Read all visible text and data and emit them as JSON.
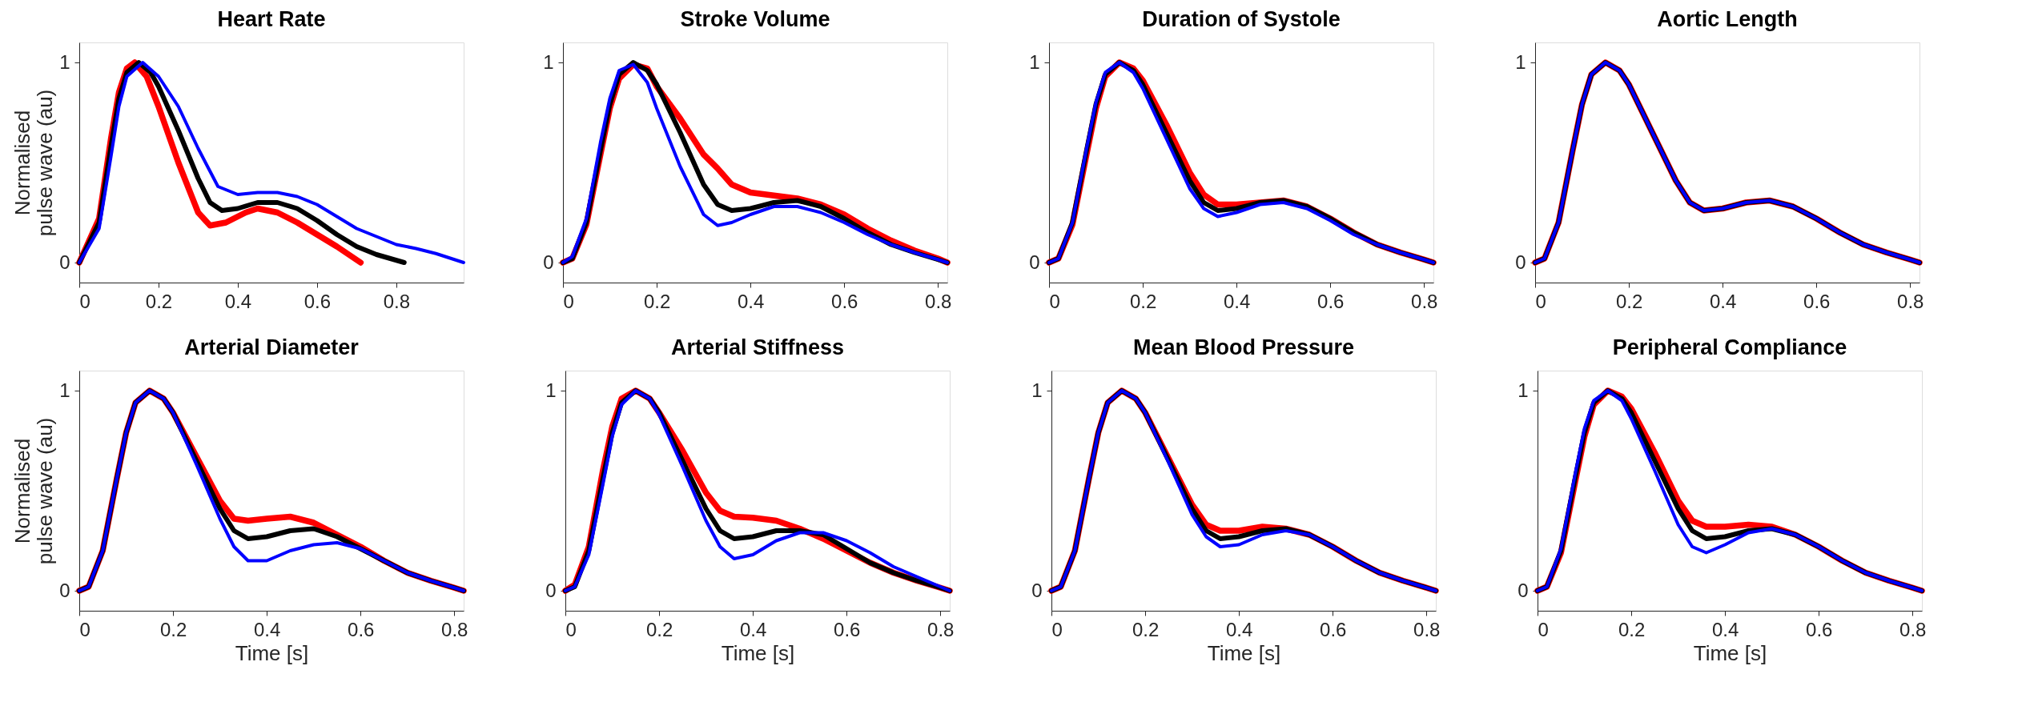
{
  "chart_data": [
    {
      "type": "line",
      "title": "Heart Rate",
      "ylabel": "Normalised pulse wave (au)",
      "xlim": [
        0,
        0.97
      ],
      "ylim": [
        -0.1,
        1.1
      ],
      "xticks": [
        0,
        0.2,
        0.4,
        0.6,
        0.8
      ],
      "yticks": [
        0,
        1
      ],
      "grid": false,
      "series": [
        {
          "color": "#ff0000",
          "x": [
            0,
            0.05,
            0.08,
            0.1,
            0.12,
            0.14,
            0.17,
            0.2,
            0.25,
            0.3,
            0.33,
            0.37,
            0.42,
            0.45,
            0.5,
            0.55,
            0.6,
            0.65,
            0.71
          ],
          "values": [
            0,
            0.22,
            0.62,
            0.85,
            0.97,
            1.0,
            0.93,
            0.78,
            0.5,
            0.25,
            0.185,
            0.2,
            0.25,
            0.27,
            0.25,
            0.2,
            0.14,
            0.08,
            0
          ]
        },
        {
          "color": "#000000",
          "x": [
            0,
            0.05,
            0.08,
            0.1,
            0.12,
            0.15,
            0.18,
            0.2,
            0.25,
            0.3,
            0.33,
            0.36,
            0.4,
            0.45,
            0.5,
            0.55,
            0.6,
            0.65,
            0.7,
            0.75,
            0.82
          ],
          "values": [
            0,
            0.2,
            0.58,
            0.82,
            0.95,
            1.0,
            0.95,
            0.88,
            0.66,
            0.42,
            0.3,
            0.26,
            0.27,
            0.3,
            0.3,
            0.27,
            0.21,
            0.14,
            0.08,
            0.04,
            0
          ]
        },
        {
          "color": "#0000ff",
          "x": [
            0,
            0.05,
            0.08,
            0.1,
            0.12,
            0.16,
            0.2,
            0.25,
            0.3,
            0.35,
            0.4,
            0.45,
            0.5,
            0.55,
            0.6,
            0.65,
            0.7,
            0.75,
            0.8,
            0.85,
            0.9,
            0.97
          ],
          "values": [
            0,
            0.17,
            0.53,
            0.78,
            0.93,
            1.0,
            0.93,
            0.78,
            0.57,
            0.38,
            0.34,
            0.35,
            0.35,
            0.33,
            0.29,
            0.23,
            0.17,
            0.13,
            0.09,
            0.07,
            0.045,
            0
          ]
        }
      ]
    },
    {
      "type": "line",
      "title": "Stroke Volume",
      "x": [
        0,
        0.02,
        0.05,
        0.08,
        0.1,
        0.12,
        0.15,
        0.18,
        0.2,
        0.25,
        0.3,
        0.33,
        0.36,
        0.4,
        0.45,
        0.5,
        0.55,
        0.6,
        0.65,
        0.7,
        0.75,
        0.8,
        0.82
      ],
      "xlim": [
        0,
        0.82
      ],
      "ylim": [
        -0.1,
        1.1
      ],
      "xticks": [
        0,
        0.2,
        0.4,
        0.6,
        0.8
      ],
      "yticks": [
        0,
        1
      ],
      "grid": false,
      "series": [
        {
          "color": "#ff0000",
          "values": [
            0,
            0.02,
            0.19,
            0.54,
            0.77,
            0.92,
            0.99,
            0.97,
            0.88,
            0.72,
            0.54,
            0.47,
            0.39,
            0.35,
            0.335,
            0.32,
            0.29,
            0.24,
            0.17,
            0.11,
            0.06,
            0.02,
            0
          ]
        },
        {
          "color": "#000000",
          "values": [
            0,
            0.02,
            0.2,
            0.56,
            0.79,
            0.94,
            1.0,
            0.96,
            0.89,
            0.65,
            0.39,
            0.29,
            0.26,
            0.27,
            0.3,
            0.31,
            0.28,
            0.22,
            0.15,
            0.09,
            0.05,
            0.015,
            0
          ]
        },
        {
          "color": "#0000ff",
          "values": [
            0,
            0.03,
            0.22,
            0.6,
            0.82,
            0.96,
            0.99,
            0.9,
            0.77,
            0.48,
            0.24,
            0.185,
            0.2,
            0.24,
            0.28,
            0.28,
            0.25,
            0.2,
            0.14,
            0.09,
            0.05,
            0.015,
            0
          ]
        }
      ]
    },
    {
      "type": "line",
      "title": "Duration of Systole",
      "x": [
        0,
        0.02,
        0.05,
        0.08,
        0.1,
        0.12,
        0.15,
        0.18,
        0.2,
        0.25,
        0.3,
        0.33,
        0.36,
        0.4,
        0.45,
        0.5,
        0.55,
        0.6,
        0.65,
        0.7,
        0.75,
        0.8,
        0.82
      ],
      "xlim": [
        0,
        0.82
      ],
      "ylim": [
        -0.1,
        1.1
      ],
      "xticks": [
        0,
        0.2,
        0.4,
        0.6,
        0.8
      ],
      "yticks": [
        0,
        1
      ],
      "grid": false,
      "series": [
        {
          "color": "#ff0000",
          "values": [
            0,
            0.02,
            0.19,
            0.54,
            0.77,
            0.93,
            1.0,
            0.97,
            0.91,
            0.69,
            0.45,
            0.34,
            0.29,
            0.29,
            0.3,
            0.31,
            0.28,
            0.22,
            0.15,
            0.09,
            0.05,
            0.015,
            0
          ]
        },
        {
          "color": "#000000",
          "values": [
            0,
            0.02,
            0.2,
            0.56,
            0.79,
            0.94,
            1.0,
            0.96,
            0.89,
            0.65,
            0.41,
            0.3,
            0.26,
            0.27,
            0.3,
            0.31,
            0.28,
            0.22,
            0.15,
            0.09,
            0.05,
            0.015,
            0
          ]
        },
        {
          "color": "#0000ff",
          "values": [
            0,
            0.02,
            0.2,
            0.57,
            0.8,
            0.95,
            1.0,
            0.95,
            0.87,
            0.62,
            0.37,
            0.27,
            0.23,
            0.25,
            0.29,
            0.3,
            0.27,
            0.21,
            0.14,
            0.09,
            0.05,
            0.015,
            0
          ]
        }
      ]
    },
    {
      "type": "line",
      "title": "Aortic Length",
      "x": [
        0,
        0.02,
        0.05,
        0.08,
        0.1,
        0.12,
        0.15,
        0.18,
        0.2,
        0.25,
        0.3,
        0.33,
        0.36,
        0.4,
        0.45,
        0.5,
        0.55,
        0.6,
        0.65,
        0.7,
        0.75,
        0.8,
        0.82
      ],
      "xlim": [
        0,
        0.82
      ],
      "ylim": [
        -0.1,
        1.1
      ],
      "xticks": [
        0,
        0.2,
        0.4,
        0.6,
        0.8
      ],
      "yticks": [
        0,
        1
      ],
      "grid": false,
      "series": [
        {
          "color": "#ff0000",
          "values": [
            0,
            0.02,
            0.2,
            0.56,
            0.79,
            0.94,
            1.0,
            0.96,
            0.89,
            0.65,
            0.41,
            0.3,
            0.26,
            0.27,
            0.3,
            0.31,
            0.28,
            0.22,
            0.15,
            0.09,
            0.05,
            0.015,
            0
          ]
        },
        {
          "color": "#000000",
          "values": [
            0,
            0.02,
            0.2,
            0.56,
            0.79,
            0.94,
            1.0,
            0.96,
            0.89,
            0.65,
            0.41,
            0.3,
            0.26,
            0.27,
            0.3,
            0.31,
            0.28,
            0.22,
            0.15,
            0.09,
            0.05,
            0.015,
            0
          ]
        },
        {
          "color": "#0000ff",
          "values": [
            0,
            0.02,
            0.2,
            0.56,
            0.79,
            0.94,
            1.0,
            0.96,
            0.89,
            0.65,
            0.41,
            0.3,
            0.26,
            0.27,
            0.3,
            0.31,
            0.28,
            0.22,
            0.15,
            0.09,
            0.05,
            0.015,
            0
          ]
        }
      ]
    },
    {
      "type": "line",
      "title": "Arterial Diameter",
      "ylabel": "Normalised pulse wave (au)",
      "xlabel": "Time [s]",
      "x": [
        0,
        0.02,
        0.05,
        0.08,
        0.1,
        0.12,
        0.15,
        0.18,
        0.2,
        0.25,
        0.3,
        0.33,
        0.36,
        0.4,
        0.45,
        0.5,
        0.55,
        0.6,
        0.65,
        0.7,
        0.75,
        0.8,
        0.82
      ],
      "xlim": [
        0,
        0.82
      ],
      "ylim": [
        -0.1,
        1.1
      ],
      "xticks": [
        0,
        0.2,
        0.4,
        0.6,
        0.8
      ],
      "yticks": [
        0,
        1
      ],
      "grid": false,
      "series": [
        {
          "color": "#ff0000",
          "values": [
            0,
            0.02,
            0.2,
            0.56,
            0.79,
            0.94,
            1.0,
            0.96,
            0.89,
            0.67,
            0.45,
            0.36,
            0.35,
            0.36,
            0.37,
            0.34,
            0.28,
            0.22,
            0.15,
            0.09,
            0.05,
            0.015,
            0
          ]
        },
        {
          "color": "#000000",
          "values": [
            0,
            0.02,
            0.2,
            0.56,
            0.79,
            0.94,
            1.0,
            0.96,
            0.89,
            0.65,
            0.41,
            0.3,
            0.26,
            0.27,
            0.3,
            0.31,
            0.27,
            0.21,
            0.15,
            0.09,
            0.05,
            0.015,
            0
          ]
        },
        {
          "color": "#0000ff",
          "values": [
            0,
            0.02,
            0.2,
            0.56,
            0.79,
            0.94,
            1.0,
            0.96,
            0.89,
            0.63,
            0.36,
            0.22,
            0.15,
            0.15,
            0.2,
            0.23,
            0.24,
            0.21,
            0.15,
            0.09,
            0.05,
            0.015,
            0
          ]
        }
      ]
    },
    {
      "type": "line",
      "title": "Arterial Stiffness",
      "xlabel": "Time [s]",
      "x": [
        0,
        0.02,
        0.05,
        0.08,
        0.1,
        0.12,
        0.15,
        0.18,
        0.2,
        0.25,
        0.3,
        0.33,
        0.36,
        0.4,
        0.45,
        0.5,
        0.55,
        0.6,
        0.65,
        0.7,
        0.75,
        0.8,
        0.82
      ],
      "xlim": [
        0,
        0.82
      ],
      "ylim": [
        -0.1,
        1.1
      ],
      "xticks": [
        0,
        0.2,
        0.4,
        0.6,
        0.8
      ],
      "yticks": [
        0,
        1
      ],
      "grid": false,
      "series": [
        {
          "color": "#ff0000",
          "values": [
            0,
            0.03,
            0.22,
            0.6,
            0.82,
            0.96,
            1.0,
            0.96,
            0.89,
            0.7,
            0.49,
            0.4,
            0.37,
            0.365,
            0.35,
            0.31,
            0.26,
            0.2,
            0.14,
            0.09,
            0.05,
            0.015,
            0
          ]
        },
        {
          "color": "#000000",
          "values": [
            0,
            0.02,
            0.2,
            0.56,
            0.79,
            0.94,
            1.0,
            0.96,
            0.89,
            0.65,
            0.41,
            0.3,
            0.26,
            0.27,
            0.3,
            0.3,
            0.28,
            0.21,
            0.14,
            0.09,
            0.05,
            0.015,
            0
          ]
        },
        {
          "color": "#0000ff",
          "values": [
            0,
            0.02,
            0.18,
            0.53,
            0.77,
            0.93,
            1.0,
            0.96,
            0.88,
            0.62,
            0.35,
            0.22,
            0.16,
            0.18,
            0.25,
            0.29,
            0.29,
            0.25,
            0.19,
            0.12,
            0.07,
            0.02,
            0
          ]
        }
      ]
    },
    {
      "type": "line",
      "title": "Mean Blood Pressure",
      "xlabel": "Time [s]",
      "x": [
        0,
        0.02,
        0.05,
        0.08,
        0.1,
        0.12,
        0.15,
        0.18,
        0.2,
        0.25,
        0.3,
        0.33,
        0.36,
        0.4,
        0.45,
        0.5,
        0.55,
        0.6,
        0.65,
        0.7,
        0.75,
        0.8,
        0.82
      ],
      "xlim": [
        0,
        0.82
      ],
      "ylim": [
        -0.1,
        1.1
      ],
      "xticks": [
        0,
        0.2,
        0.4,
        0.6,
        0.8
      ],
      "yticks": [
        0,
        1
      ],
      "grid": false,
      "series": [
        {
          "color": "#ff0000",
          "values": [
            0,
            0.02,
            0.2,
            0.56,
            0.79,
            0.94,
            1.0,
            0.96,
            0.89,
            0.66,
            0.43,
            0.33,
            0.3,
            0.3,
            0.32,
            0.31,
            0.28,
            0.22,
            0.15,
            0.09,
            0.05,
            0.015,
            0
          ]
        },
        {
          "color": "#000000",
          "values": [
            0,
            0.02,
            0.2,
            0.56,
            0.79,
            0.94,
            1.0,
            0.96,
            0.89,
            0.65,
            0.41,
            0.3,
            0.26,
            0.27,
            0.3,
            0.31,
            0.28,
            0.22,
            0.15,
            0.09,
            0.05,
            0.015,
            0
          ]
        },
        {
          "color": "#0000ff",
          "values": [
            0,
            0.02,
            0.2,
            0.56,
            0.79,
            0.94,
            1.0,
            0.96,
            0.89,
            0.64,
            0.38,
            0.27,
            0.22,
            0.23,
            0.28,
            0.3,
            0.28,
            0.22,
            0.15,
            0.09,
            0.05,
            0.015,
            0
          ]
        }
      ]
    },
    {
      "type": "line",
      "title": "Peripheral Compliance",
      "xlabel": "Time [s]",
      "x": [
        0,
        0.02,
        0.05,
        0.08,
        0.1,
        0.12,
        0.15,
        0.18,
        0.2,
        0.25,
        0.3,
        0.33,
        0.36,
        0.4,
        0.45,
        0.5,
        0.55,
        0.6,
        0.65,
        0.7,
        0.75,
        0.8,
        0.82
      ],
      "xlim": [
        0,
        0.82
      ],
      "ylim": [
        -0.1,
        1.1
      ],
      "xticks": [
        0,
        0.2,
        0.4,
        0.6,
        0.8
      ],
      "yticks": [
        0,
        1
      ],
      "grid": false,
      "series": [
        {
          "color": "#ff0000",
          "values": [
            0,
            0.02,
            0.19,
            0.54,
            0.77,
            0.93,
            1.0,
            0.97,
            0.91,
            0.69,
            0.45,
            0.35,
            0.32,
            0.32,
            0.33,
            0.32,
            0.28,
            0.22,
            0.15,
            0.09,
            0.05,
            0.015,
            0
          ]
        },
        {
          "color": "#000000",
          "values": [
            0,
            0.02,
            0.2,
            0.56,
            0.79,
            0.94,
            1.0,
            0.96,
            0.89,
            0.65,
            0.41,
            0.3,
            0.26,
            0.27,
            0.3,
            0.31,
            0.28,
            0.22,
            0.15,
            0.09,
            0.05,
            0.015,
            0
          ]
        },
        {
          "color": "#0000ff",
          "values": [
            0,
            0.02,
            0.21,
            0.58,
            0.81,
            0.95,
            1.0,
            0.95,
            0.86,
            0.6,
            0.33,
            0.22,
            0.19,
            0.23,
            0.29,
            0.31,
            0.28,
            0.22,
            0.15,
            0.09,
            0.05,
            0.015,
            0
          ]
        }
      ]
    }
  ]
}
